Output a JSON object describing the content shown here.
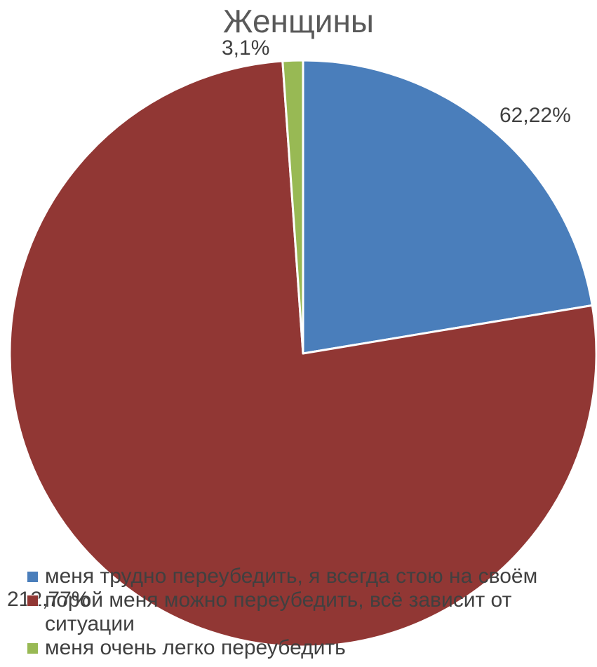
{
  "chart_data": {
    "type": "pie",
    "title": "Женщины",
    "categories": [
      "меня трудно переубедить, я всегда стою на своём",
      "порой меня можно переубедить, всё зависит от ситуации",
      "меня очень легко переубедить"
    ],
    "values": [
      62.22,
      212.77,
      3.1
    ],
    "data_labels": [
      "62,22%",
      "212,77%",
      "3,1%"
    ],
    "colors": [
      "#4a7ebb",
      "#913734",
      "#98b954"
    ],
    "legend": "bottom-left",
    "grid": false
  }
}
